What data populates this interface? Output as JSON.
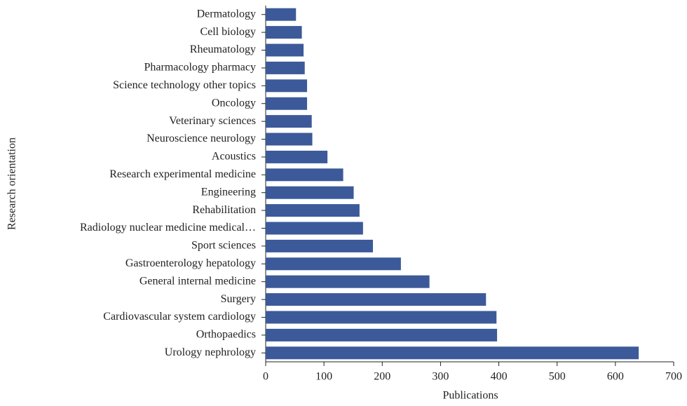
{
  "chart_data": {
    "type": "bar",
    "orientation": "horizontal",
    "xlabel": "Publications",
    "ylabel": "Research orientation",
    "categories": [
      "Dermatology",
      "Cell biology",
      "Rheumatology",
      "Pharmacology pharmacy",
      "Science technology other topics",
      "Oncology",
      "Veterinary sciences",
      "Neuroscience neurology",
      "Acoustics",
      "Research experimental medicine",
      "Engineering",
      "Rehabilitation",
      "Radiology nuclear medicine medical…",
      "Sport sciences",
      "Gastroenterology hepatology",
      "General internal medicine",
      "Surgery",
      "Cardiovascular system cardiology",
      "Orthopaedics",
      "Urology nephrology"
    ],
    "values": [
      52,
      62,
      65,
      67,
      71,
      71,
      79,
      80,
      106,
      133,
      151,
      161,
      167,
      184,
      232,
      281,
      378,
      396,
      397,
      640
    ],
    "color": "#3c5a9a",
    "xlim": [
      0,
      700
    ],
    "xticks": [
      0,
      100,
      200,
      300,
      400,
      500,
      600,
      700
    ],
    "grid": false
  }
}
